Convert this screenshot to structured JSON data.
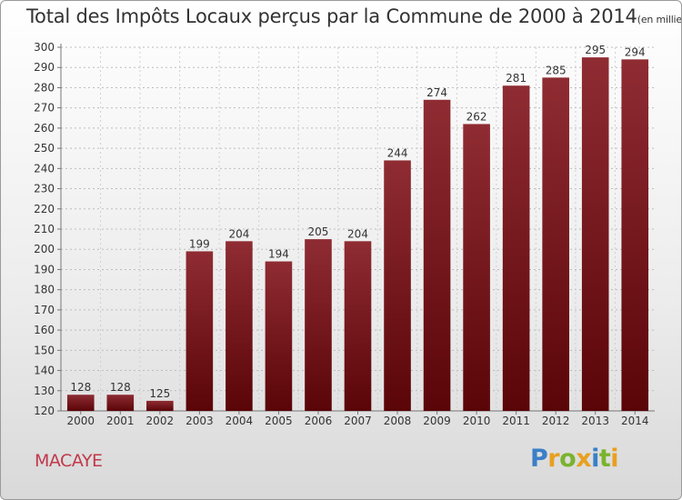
{
  "chart_data": {
    "type": "bar",
    "title": "Total des Impôts Locaux perçus par la Commune de 2000 à 2014",
    "unit_note": "(en milliers d'€)",
    "categories": [
      "2000",
      "2001",
      "2002",
      "2003",
      "2004",
      "2005",
      "2006",
      "2007",
      "2008",
      "2009",
      "2010",
      "2011",
      "2012",
      "2013",
      "2014"
    ],
    "values": [
      128,
      128,
      125,
      199,
      204,
      194,
      205,
      204,
      244,
      274,
      262,
      281,
      285,
      295,
      294
    ],
    "xlabel": "",
    "ylabel": "",
    "ylim": [
      120,
      300
    ],
    "yticks": [
      120,
      130,
      140,
      150,
      160,
      170,
      180,
      190,
      200,
      210,
      220,
      230,
      240,
      250,
      260,
      270,
      280,
      290,
      300
    ],
    "grid": true,
    "bar_color": "#7a1a22"
  },
  "footer": {
    "commune": "MACAYE",
    "brand": "Proxiti"
  }
}
